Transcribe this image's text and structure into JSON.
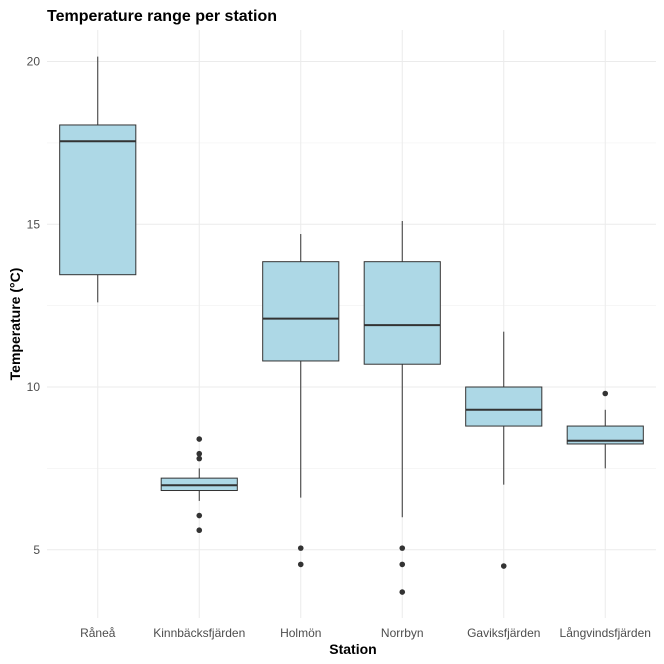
{
  "chart_data": {
    "type": "boxplot",
    "title": "Temperature range per station",
    "xlabel": "Station",
    "ylabel": "Temperature (°C)",
    "ylim": [
      3.2,
      21.2
    ],
    "yticks": [
      5,
      10,
      15,
      20
    ],
    "grid": true,
    "box_fill": "#add8e6",
    "box_stroke": "#333333",
    "categories": [
      "Råneå",
      "Kinnbäcksfjärden",
      "Holmön",
      "Norrbyn",
      "Gaviksfjärden",
      "Långvindsfjärden"
    ],
    "boxes": [
      {
        "name": "Råneå",
        "whisker_low": 12.6,
        "q1": 13.45,
        "median": 17.55,
        "q3": 18.05,
        "whisker_high": 20.15,
        "outliers": []
      },
      {
        "name": "Kinnbäcksfjärden",
        "whisker_low": 6.5,
        "q1": 6.82,
        "median": 6.98,
        "q3": 7.2,
        "whisker_high": 7.5,
        "outliers": [
          5.6,
          6.05,
          7.8,
          7.95,
          8.4
        ]
      },
      {
        "name": "Holmön",
        "whisker_low": 6.6,
        "q1": 10.8,
        "median": 12.1,
        "q3": 13.85,
        "whisker_high": 14.7,
        "outliers": [
          4.55,
          5.05
        ]
      },
      {
        "name": "Norrbyn",
        "whisker_low": 6.0,
        "q1": 10.7,
        "median": 11.9,
        "q3": 13.85,
        "whisker_high": 15.1,
        "outliers": [
          3.7,
          4.55,
          5.05
        ]
      },
      {
        "name": "Gaviksfjärden",
        "whisker_low": 7.0,
        "q1": 8.8,
        "median": 9.3,
        "q3": 10.0,
        "whisker_high": 11.7,
        "outliers": [
          4.5
        ]
      },
      {
        "name": "Långvindsfjärden",
        "whisker_low": 7.5,
        "q1": 8.25,
        "median": 8.35,
        "q3": 8.8,
        "whisker_high": 9.3,
        "outliers": [
          9.8
        ]
      }
    ]
  }
}
